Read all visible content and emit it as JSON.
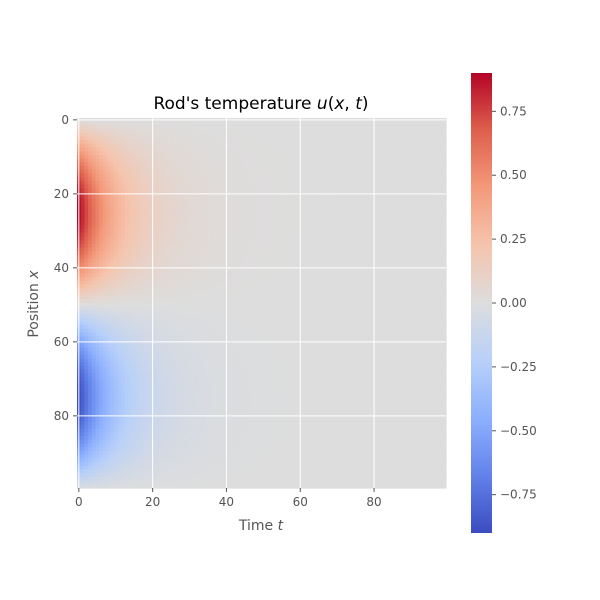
{
  "chart_data": {
    "type": "heatmap",
    "title_prefix": "Rod's temperature ",
    "title_math": "u",
    "title_open": "(",
    "title_var1": "x",
    "title_sep": ", ",
    "title_var2": "t",
    "title_close": ")",
    "xlabel_text": "Time ",
    "xlabel_var": "t",
    "ylabel_text": "Position ",
    "ylabel_var": "x",
    "xlim": [
      0,
      99
    ],
    "ylim": [
      0,
      99
    ],
    "x_ticks": [
      0,
      20,
      40,
      60,
      80
    ],
    "y_ticks": [
      0,
      20,
      40,
      60,
      80
    ],
    "x_tick_labels": [
      "0",
      "20",
      "40",
      "60",
      "80"
    ],
    "y_tick_labels": [
      "0",
      "20",
      "40",
      "60",
      "80"
    ],
    "grid": true,
    "colormap": "coolwarm",
    "clim": [
      -0.9,
      0.9
    ],
    "colorbar_ticks": [
      0.75,
      0.5,
      0.25,
      0.0,
      -0.25,
      -0.5,
      -0.75
    ],
    "colorbar_tick_labels": [
      "0.75",
      "0.50",
      "0.25",
      "0.00",
      "−0.25",
      "−0.50",
      "−0.75"
    ],
    "field": {
      "description_free": true,
      "nx": 100,
      "nt": 100,
      "initial_condition": "sin(2*pi*x/100)",
      "amplitude": 0.9,
      "decay_rate": 0.1
    }
  }
}
